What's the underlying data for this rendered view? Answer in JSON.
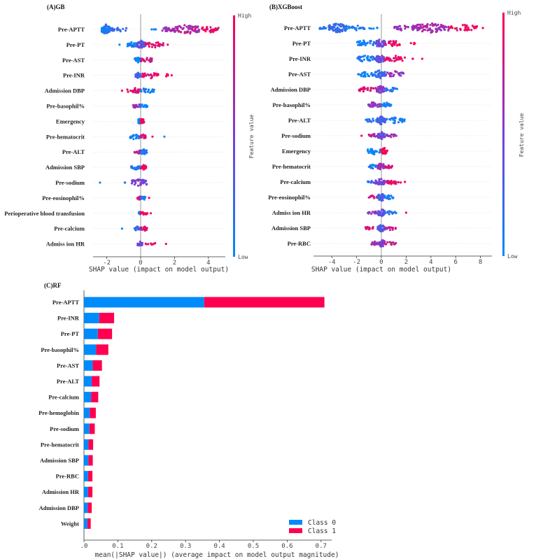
{
  "colors": {
    "low": "#008afb",
    "mid": "#7b3fd6",
    "high": "#ff0052",
    "class0": "#008bfb",
    "class1": "#ff0051"
  },
  "chart_data": [
    {
      "type": "scatter",
      "subtype": "shap-beeswarm",
      "title": "(A)GB",
      "xlabel": "SHAP value (impact on model output)",
      "xlim": [
        -2.7,
        5.0
      ],
      "xticks": [
        -2,
        0,
        2,
        4
      ],
      "colorbar": {
        "label": "Feature value",
        "high": "High",
        "low": "Low"
      },
      "features": [
        {
          "name": "Pre-APTT",
          "segments": [
            [
              -2.3,
              -1.8,
              0.1,
              60
            ],
            [
              -1.8,
              -0.8,
              0.2,
              20
            ],
            [
              0.6,
              0.9,
              0.1,
              3
            ],
            [
              1.2,
              2.0,
              0.6,
              20
            ],
            [
              2.0,
              3.5,
              0.7,
              60
            ],
            [
              3.5,
              4.6,
              0.95,
              30
            ]
          ]
        },
        {
          "name": "Pre-PT",
          "segments": [
            [
              -1.25,
              -1.25,
              0,
              1
            ],
            [
              -0.8,
              -0.2,
              0.05,
              25
            ],
            [
              -0.2,
              0.3,
              0.4,
              40
            ],
            [
              0.3,
              1.4,
              0.9,
              25
            ],
            [
              1.6,
              1.6,
              1,
              1
            ]
          ]
        },
        {
          "name": "Pre-AST",
          "segments": [
            [
              -0.35,
              0,
              0.05,
              25
            ],
            [
              0,
              0.7,
              0.8,
              25
            ]
          ]
        },
        {
          "name": "Pre-INR",
          "segments": [
            [
              -0.3,
              0,
              0.2,
              25
            ],
            [
              0,
              1.2,
              0.9,
              25
            ],
            [
              1.2,
              1.9,
              1,
              5
            ]
          ]
        },
        {
          "name": "Admission DBP",
          "segments": [
            [
              -1.1,
              -1.1,
              1,
              1
            ],
            [
              -0.8,
              0,
              0.9,
              25
            ],
            [
              0,
              0.8,
              0.1,
              25
            ]
          ]
        },
        {
          "name": "Pre-basophil%",
          "segments": [
            [
              -0.45,
              0,
              0.6,
              20
            ],
            [
              0,
              0.4,
              0.05,
              15
            ]
          ]
        },
        {
          "name": "Emergency",
          "segments": [
            [
              -0.15,
              0,
              0,
              25
            ],
            [
              0,
              0.2,
              1,
              25
            ]
          ]
        },
        {
          "name": "Pre-hematocrit",
          "segments": [
            [
              -0.7,
              0,
              0.05,
              25
            ],
            [
              0,
              0.3,
              0.8,
              20
            ],
            [
              0.7,
              0.7,
              1,
              1
            ],
            [
              1.4,
              1.4,
              0,
              1
            ]
          ]
        },
        {
          "name": "Pre-ALT",
          "segments": [
            [
              -0.4,
              0,
              0.8,
              15
            ],
            [
              0,
              0.4,
              0.1,
              25
            ]
          ]
        },
        {
          "name": "Admission SBP",
          "segments": [
            [
              -0.6,
              0,
              0.1,
              20
            ],
            [
              0,
              0.35,
              0.9,
              20
            ]
          ]
        },
        {
          "name": "Pre-sodium",
          "segments": [
            [
              -2.4,
              -2.4,
              0,
              1
            ],
            [
              -1.0,
              -0.9,
              0,
              2
            ],
            [
              -0.6,
              0.4,
              0.5,
              35
            ]
          ]
        },
        {
          "name": "Pre-eosinophil%",
          "segments": [
            [
              -0.2,
              0,
              0.8,
              15
            ],
            [
              0,
              0.3,
              0.1,
              15
            ],
            [
              0.5,
              0.5,
              1,
              1
            ]
          ]
        },
        {
          "name": "Perioperative blood transfusion",
          "segments": [
            [
              -0.1,
              0,
              0.1,
              15
            ],
            [
              0,
              0.4,
              1,
              15
            ],
            [
              0.6,
              0.6,
              1,
              1
            ]
          ]
        },
        {
          "name": "Pre-calcium",
          "segments": [
            [
              -1.1,
              -1.1,
              0,
              1
            ],
            [
              -0.4,
              0,
              0.2,
              15
            ],
            [
              0,
              0.4,
              0.8,
              20
            ]
          ]
        },
        {
          "name": "Admiss ion HR",
          "segments": [
            [
              -0.2,
              0.1,
              0.4,
              20
            ],
            [
              0.2,
              0.9,
              1,
              8
            ],
            [
              1.5,
              1.5,
              1,
              1
            ]
          ]
        }
      ]
    },
    {
      "type": "scatter",
      "subtype": "shap-beeswarm",
      "title": "(B)XGBoost",
      "xlabel": "SHAP value (impact on model output)",
      "xlim": [
        -5.5,
        8.9
      ],
      "xticks": [
        -4,
        -2,
        0,
        2,
        4,
        6,
        8
      ],
      "colorbar": {
        "label": "Feature value",
        "high": "High",
        "low": "Low"
      },
      "features": [
        {
          "name": "Pre-APTT",
          "segments": [
            [
              -5.0,
              -4.3,
              0.15,
              15
            ],
            [
              -4.3,
              -2.8,
              0.2,
              70
            ],
            [
              -2.8,
              -1.2,
              0.1,
              20
            ],
            [
              -1.0,
              -0.3,
              0,
              5
            ],
            [
              0.9,
              2.5,
              0.6,
              20
            ],
            [
              2.5,
              5.5,
              0.65,
              80
            ],
            [
              5.5,
              7.8,
              0.95,
              30
            ],
            [
              8.2,
              8.2,
              1,
              1
            ]
          ]
        },
        {
          "name": "Pre-PT",
          "segments": [
            [
              -2.0,
              -0.5,
              0.05,
              30
            ],
            [
              -0.5,
              0.3,
              0.45,
              40
            ],
            [
              0.3,
              1.6,
              0.9,
              25
            ],
            [
              2.1,
              2.7,
              1,
              5
            ]
          ]
        },
        {
          "name": "Pre-INR",
          "segments": [
            [
              -2.0,
              -0.5,
              0.05,
              30
            ],
            [
              -0.5,
              0.3,
              0.45,
              40
            ],
            [
              0.3,
              2.0,
              0.9,
              25
            ],
            [
              2.5,
              2.6,
              1,
              2
            ],
            [
              3.3,
              3.3,
              1,
              1
            ]
          ]
        },
        {
          "name": "Pre-AST",
          "segments": [
            [
              -1.9,
              -0.5,
              0.05,
              25
            ],
            [
              -0.5,
              0.3,
              0.2,
              40
            ],
            [
              0.3,
              1.9,
              0.6,
              25
            ]
          ]
        },
        {
          "name": "Admission DBP",
          "segments": [
            [
              -1.8,
              -0.4,
              0.9,
              25
            ],
            [
              -0.4,
              0.3,
              0.5,
              35
            ],
            [
              0.3,
              1.3,
              0.1,
              15
            ]
          ]
        },
        {
          "name": "Pre-basophil%",
          "segments": [
            [
              -1.1,
              -0.1,
              0.6,
              25
            ],
            [
              0,
              0.8,
              0.05,
              20
            ]
          ]
        },
        {
          "name": "Pre-ALT",
          "segments": [
            [
              -1.3,
              -0.3,
              0.15,
              15
            ],
            [
              -0.3,
              0.3,
              0.25,
              40
            ],
            [
              0.3,
              1.9,
              0.05,
              25
            ]
          ]
        },
        {
          "name": "Pre-sodium",
          "segments": [
            [
              -1.6,
              -1.6,
              1,
              1
            ],
            [
              -1.1,
              -0.3,
              0.7,
              15
            ],
            [
              -0.3,
              0.3,
              0.4,
              35
            ],
            [
              0.3,
              1.2,
              0.6,
              15
            ]
          ]
        },
        {
          "name": "Emergency",
          "segments": [
            [
              -1.1,
              -0.1,
              0,
              30
            ],
            [
              0,
              0.5,
              1,
              30
            ]
          ]
        },
        {
          "name": "Pre-hematocrit",
          "segments": [
            [
              -1.1,
              -0.3,
              0.1,
              15
            ],
            [
              -0.3,
              0.3,
              0.6,
              35
            ],
            [
              0.3,
              0.9,
              0.8,
              15
            ]
          ]
        },
        {
          "name": "Pre-calcium",
          "segments": [
            [
              -1.1,
              -0.5,
              0.1,
              8
            ],
            [
              -0.5,
              0.3,
              0.5,
              35
            ],
            [
              0.3,
              1.6,
              0.9,
              20
            ],
            [
              1.9,
              1.9,
              1,
              1
            ]
          ]
        },
        {
          "name": "Pre-eosinophil%",
          "segments": [
            [
              -1.1,
              -0.3,
              0.85,
              15
            ],
            [
              -0.3,
              0.3,
              0.3,
              35
            ],
            [
              0.3,
              1.0,
              0.1,
              15
            ]
          ]
        },
        {
          "name": "Admiss ion HR",
          "segments": [
            [
              -1.1,
              -0.3,
              0.6,
              15
            ],
            [
              -0.3,
              0.3,
              0.4,
              35
            ],
            [
              0.3,
              1.2,
              0.1,
              15
            ],
            [
              2.0,
              2.0,
              1,
              1
            ]
          ]
        },
        {
          "name": "Admission SBP",
          "segments": [
            [
              -1.3,
              -0.3,
              0.85,
              15
            ],
            [
              -0.3,
              0.3,
              0.3,
              35
            ],
            [
              0.3,
              1.2,
              0.8,
              15
            ]
          ]
        },
        {
          "name": "Pre-RBC",
          "segments": [
            [
              -0.8,
              -0.2,
              0.6,
              15
            ],
            [
              -0.2,
              0.3,
              0.5,
              35
            ],
            [
              0.3,
              1.2,
              0.8,
              12
            ]
          ]
        }
      ]
    },
    {
      "type": "bar",
      "subtype": "stacked-horizontal",
      "title": "(C)RF",
      "xlabel": "mean(|SHAP value|) (average impact on model output magnitude)",
      "xlim": [
        0,
        0.73
      ],
      "xticks": [
        0.0,
        0.1,
        0.2,
        0.3,
        0.4,
        0.5,
        0.6,
        0.7
      ],
      "xtick_labels": [
        ".0",
        "0.1",
        "0.2",
        "0.3",
        "0.4",
        "0.5",
        "0.6",
        "0.7"
      ],
      "legend": {
        "position": "bottom-right",
        "entries": [
          "Class 0",
          "Class 1"
        ]
      },
      "categories": [
        "Pre-APTT",
        "Pre-INR",
        "Pre-PT",
        "Pre-basophil%",
        "Pre-AST",
        "Pre-ALT",
        "Pre-calcium",
        "Pre-hemoglobin",
        "Pre-sodium",
        "Pre-hematocrit",
        "Admission SBP",
        "Pre-RBC",
        "Admission HR",
        "Admission DBP",
        "Weight"
      ],
      "series": [
        {
          "name": "Class 0",
          "values": [
            0.355,
            0.045,
            0.041,
            0.036,
            0.026,
            0.023,
            0.021,
            0.017,
            0.016,
            0.013,
            0.013,
            0.012,
            0.012,
            0.011,
            0.01
          ]
        },
        {
          "name": "Class 1",
          "values": [
            0.355,
            0.044,
            0.042,
            0.036,
            0.027,
            0.023,
            0.021,
            0.018,
            0.016,
            0.014,
            0.013,
            0.013,
            0.013,
            0.012,
            0.01
          ]
        }
      ]
    }
  ]
}
